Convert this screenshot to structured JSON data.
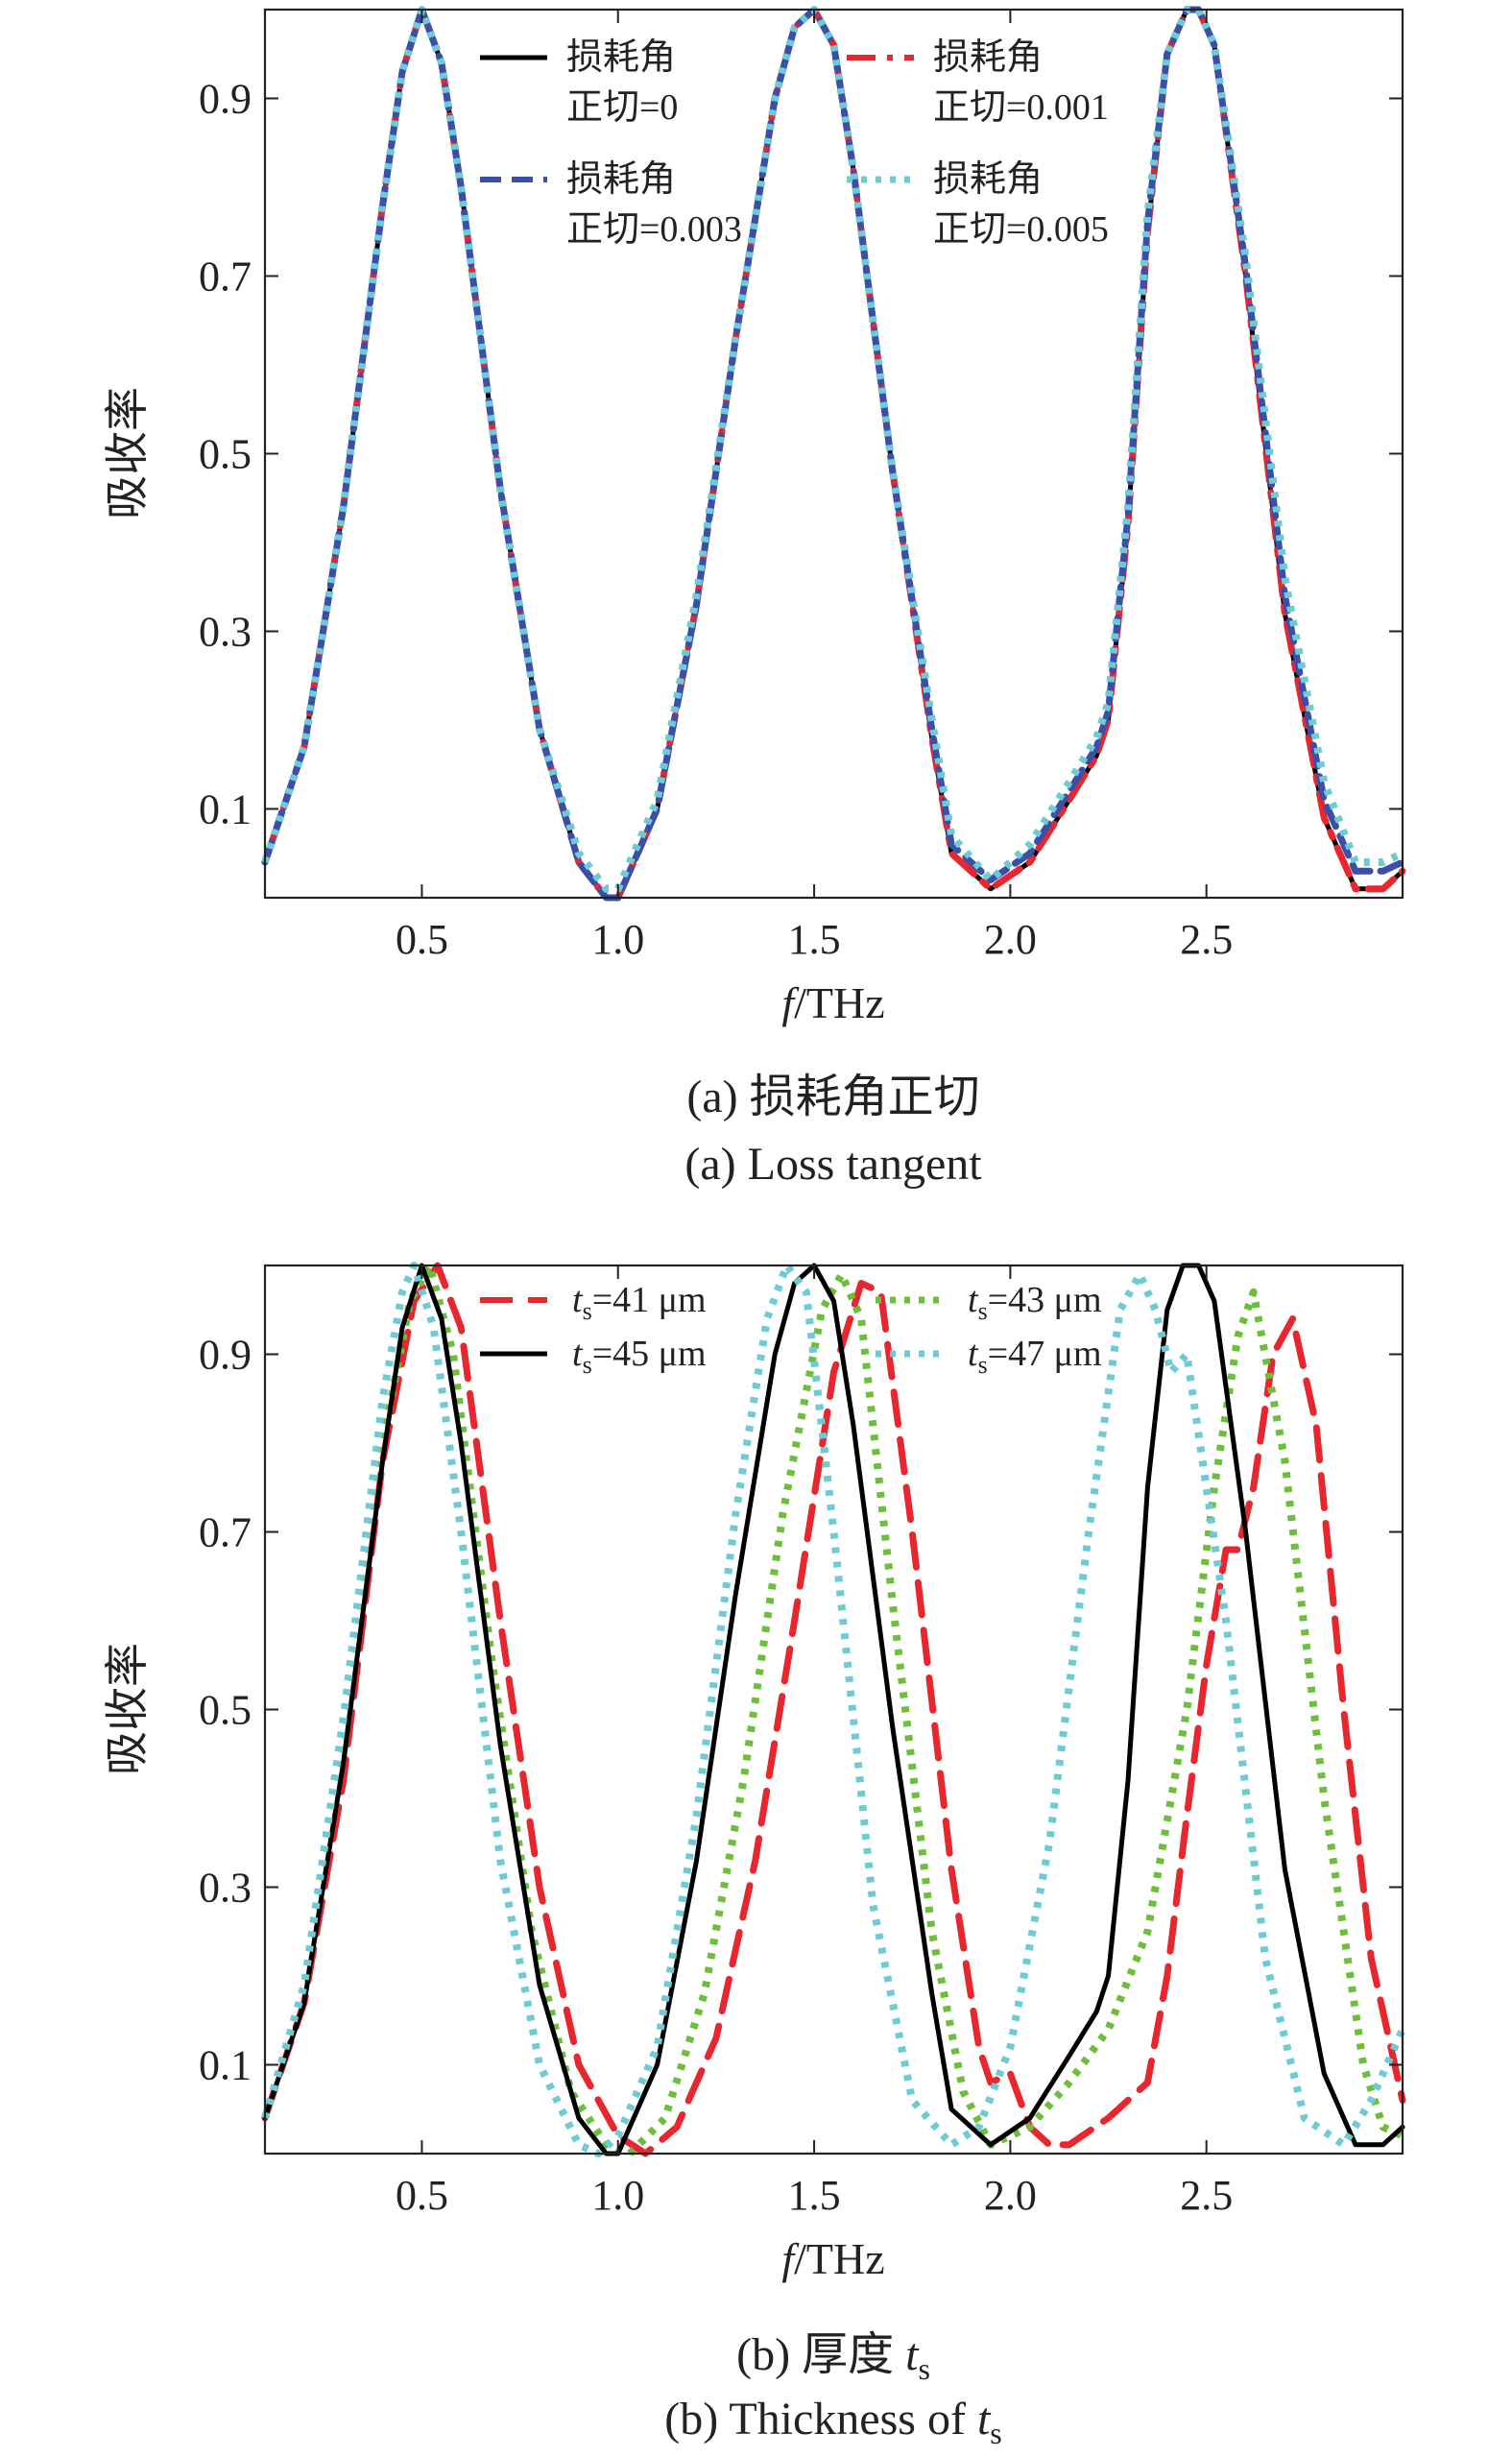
{
  "chart_data": [
    {
      "type": "line",
      "panel": "a",
      "caption_cn": "(a) 损耗角正切",
      "caption_en": "(a) Loss tangent",
      "xlabel_italic": "f",
      "xlabel_rest": "/THz",
      "ylabel": "吸收率",
      "xlim": [
        0.1,
        3.0
      ],
      "ylim": [
        0.0,
        1.0
      ],
      "xticks": [
        "0.5",
        "1.0",
        "1.5",
        "2.0",
        "2.5"
      ],
      "yticks": [
        "0.1",
        "0.3",
        "0.5",
        "0.7",
        "0.9"
      ],
      "grid": false,
      "legend_position": "top",
      "series": [
        {
          "name_line1": "损耗角",
          "name_line2": "正切=0",
          "color": "#000000",
          "dash": "solid",
          "x": [
            0.1,
            0.2,
            0.3,
            0.4,
            0.45,
            0.5,
            0.55,
            0.6,
            0.7,
            0.8,
            0.9,
            0.97,
            1.0,
            1.1,
            1.2,
            1.3,
            1.4,
            1.45,
            1.5,
            1.55,
            1.6,
            1.7,
            1.8,
            1.85,
            1.95,
            2.05,
            2.15,
            2.22,
            2.25,
            2.3,
            2.35,
            2.4,
            2.45,
            2.48,
            2.52,
            2.6,
            2.7,
            2.8,
            2.88,
            2.95,
            3.0
          ],
          "y": [
            0.04,
            0.17,
            0.44,
            0.78,
            0.93,
            1.0,
            0.94,
            0.8,
            0.46,
            0.19,
            0.04,
            0.0,
            0.0,
            0.1,
            0.33,
            0.63,
            0.9,
            0.98,
            1.0,
            0.96,
            0.82,
            0.48,
            0.18,
            0.05,
            0.01,
            0.04,
            0.11,
            0.16,
            0.2,
            0.42,
            0.75,
            0.95,
            1.0,
            1.0,
            0.96,
            0.7,
            0.32,
            0.09,
            0.01,
            0.01,
            0.03
          ]
        },
        {
          "name_line1": "损耗角",
          "name_line2": "正切=0.001",
          "color": "#e8262e",
          "dash": "dashdot",
          "x": [
            0.1,
            0.2,
            0.3,
            0.4,
            0.45,
            0.5,
            0.55,
            0.6,
            0.7,
            0.8,
            0.9,
            0.97,
            1.0,
            1.1,
            1.2,
            1.3,
            1.4,
            1.45,
            1.5,
            1.55,
            1.6,
            1.7,
            1.8,
            1.85,
            1.95,
            2.05,
            2.15,
            2.22,
            2.25,
            2.3,
            2.35,
            2.4,
            2.45,
            2.48,
            2.52,
            2.6,
            2.7,
            2.8,
            2.88,
            2.95,
            3.0
          ],
          "y": [
            0.04,
            0.17,
            0.44,
            0.78,
            0.93,
            1.0,
            0.94,
            0.8,
            0.46,
            0.19,
            0.04,
            0.0,
            0.0,
            0.1,
            0.33,
            0.63,
            0.9,
            0.98,
            1.0,
            0.96,
            0.82,
            0.48,
            0.18,
            0.05,
            0.01,
            0.04,
            0.11,
            0.16,
            0.2,
            0.42,
            0.75,
            0.95,
            1.0,
            1.0,
            0.96,
            0.7,
            0.32,
            0.09,
            0.01,
            0.01,
            0.03
          ]
        },
        {
          "name_line1": "损耗角",
          "name_line2": "正切=0.003",
          "color": "#3b4fa8",
          "dash": "dash",
          "x": [
            0.1,
            0.2,
            0.3,
            0.4,
            0.45,
            0.5,
            0.55,
            0.6,
            0.7,
            0.8,
            0.9,
            0.97,
            1.0,
            1.1,
            1.2,
            1.3,
            1.4,
            1.45,
            1.5,
            1.55,
            1.6,
            1.7,
            1.8,
            1.85,
            1.95,
            2.05,
            2.15,
            2.22,
            2.25,
            2.3,
            2.35,
            2.4,
            2.45,
            2.48,
            2.52,
            2.6,
            2.7,
            2.8,
            2.88,
            2.95,
            3.0
          ],
          "y": [
            0.04,
            0.17,
            0.44,
            0.78,
            0.93,
            1.0,
            0.94,
            0.8,
            0.46,
            0.19,
            0.04,
            0.0,
            0.0,
            0.1,
            0.33,
            0.63,
            0.9,
            0.98,
            1.0,
            0.96,
            0.82,
            0.48,
            0.19,
            0.06,
            0.02,
            0.05,
            0.12,
            0.17,
            0.21,
            0.43,
            0.76,
            0.95,
            1.0,
            1.0,
            0.96,
            0.71,
            0.34,
            0.11,
            0.03,
            0.03,
            0.04
          ]
        },
        {
          "name_line1": "损耗角",
          "name_line2": "正切=0.005",
          "color": "#6ecbd6",
          "dash": "dot",
          "x": [
            0.1,
            0.2,
            0.3,
            0.4,
            0.45,
            0.5,
            0.55,
            0.6,
            0.7,
            0.8,
            0.9,
            0.97,
            1.0,
            1.1,
            1.2,
            1.3,
            1.4,
            1.45,
            1.5,
            1.55,
            1.6,
            1.7,
            1.8,
            1.85,
            1.95,
            2.05,
            2.15,
            2.22,
            2.25,
            2.3,
            2.35,
            2.4,
            2.45,
            2.48,
            2.52,
            2.6,
            2.7,
            2.8,
            2.88,
            2.95,
            3.0
          ],
          "y": [
            0.04,
            0.17,
            0.44,
            0.78,
            0.93,
            1.0,
            0.94,
            0.8,
            0.46,
            0.19,
            0.05,
            0.01,
            0.01,
            0.11,
            0.34,
            0.63,
            0.9,
            0.98,
            1.0,
            0.96,
            0.82,
            0.48,
            0.2,
            0.07,
            0.02,
            0.06,
            0.13,
            0.18,
            0.22,
            0.44,
            0.77,
            0.95,
            1.0,
            1.0,
            0.96,
            0.72,
            0.36,
            0.13,
            0.04,
            0.04,
            0.05
          ]
        }
      ]
    },
    {
      "type": "line",
      "panel": "b",
      "caption_cn_prefix": "(b) 厚度 ",
      "caption_en_prefix": "(b) Thickness of ",
      "caption_var": "t",
      "caption_sub": "s",
      "xlabel_italic": "f",
      "xlabel_rest": "/THz",
      "ylabel": "吸收率",
      "xlim": [
        0.1,
        3.0
      ],
      "ylim": [
        0.0,
        1.0
      ],
      "xticks": [
        "0.5",
        "1.0",
        "1.5",
        "2.0",
        "2.5"
      ],
      "yticks": [
        "0.1",
        "0.3",
        "0.5",
        "0.7",
        "0.9"
      ],
      "grid": false,
      "legend_position": "top",
      "series": [
        {
          "name_var": "t",
          "name_sub": "s",
          "name_value": "=41 μm",
          "color": "#e8262e",
          "dash": "longdash",
          "x": [
            0.1,
            0.2,
            0.3,
            0.4,
            0.48,
            0.54,
            0.6,
            0.7,
            0.8,
            0.9,
            1.0,
            1.07,
            1.15,
            1.25,
            1.35,
            1.45,
            1.55,
            1.62,
            1.67,
            1.75,
            1.85,
            1.92,
            1.95,
            2.0,
            2.05,
            2.1,
            2.15,
            2.25,
            2.35,
            2.4,
            2.45,
            2.5,
            2.55,
            2.58,
            2.62,
            2.67,
            2.72,
            2.78,
            2.85,
            2.92,
            3.0
          ],
          "y": [
            0.04,
            0.17,
            0.42,
            0.78,
            0.96,
            1.0,
            0.93,
            0.6,
            0.3,
            0.1,
            0.02,
            0.0,
            0.03,
            0.13,
            0.33,
            0.6,
            0.88,
            0.98,
            0.97,
            0.7,
            0.32,
            0.12,
            0.08,
            0.09,
            0.03,
            0.01,
            0.01,
            0.04,
            0.08,
            0.2,
            0.38,
            0.55,
            0.68,
            0.68,
            0.75,
            0.9,
            0.94,
            0.82,
            0.5,
            0.22,
            0.06
          ]
        },
        {
          "name_var": "t",
          "name_sub": "s",
          "name_value": "=43 μm",
          "color": "#6cbf3a",
          "dash": "dot",
          "x": [
            0.1,
            0.2,
            0.3,
            0.4,
            0.47,
            0.52,
            0.58,
            0.68,
            0.78,
            0.88,
            0.97,
            1.03,
            1.12,
            1.22,
            1.32,
            1.42,
            1.52,
            1.57,
            1.62,
            1.7,
            1.8,
            1.88,
            1.95,
            2.05,
            2.15,
            2.25,
            2.35,
            2.45,
            2.52,
            2.58,
            2.62,
            2.7,
            2.8,
            2.9,
            2.95,
            3.0
          ],
          "y": [
            0.04,
            0.18,
            0.45,
            0.8,
            0.96,
            1.0,
            0.9,
            0.55,
            0.25,
            0.07,
            0.01,
            0.0,
            0.04,
            0.18,
            0.42,
            0.72,
            0.95,
            0.99,
            0.94,
            0.62,
            0.25,
            0.07,
            0.01,
            0.03,
            0.08,
            0.14,
            0.25,
            0.5,
            0.75,
            0.92,
            0.97,
            0.78,
            0.4,
            0.1,
            0.03,
            0.02
          ]
        },
        {
          "name_var": "t",
          "name_sub": "s",
          "name_value": "=45 μm",
          "color": "#000000",
          "dash": "solid",
          "x": [
            0.1,
            0.2,
            0.3,
            0.4,
            0.45,
            0.5,
            0.55,
            0.6,
            0.7,
            0.8,
            0.9,
            0.97,
            1.0,
            1.1,
            1.2,
            1.3,
            1.4,
            1.45,
            1.5,
            1.55,
            1.6,
            1.7,
            1.8,
            1.85,
            1.95,
            2.05,
            2.15,
            2.22,
            2.25,
            2.3,
            2.35,
            2.4,
            2.44,
            2.48,
            2.52,
            2.6,
            2.7,
            2.8,
            2.88,
            2.95,
            3.0
          ],
          "y": [
            0.04,
            0.17,
            0.44,
            0.78,
            0.93,
            1.0,
            0.94,
            0.8,
            0.46,
            0.19,
            0.04,
            0.0,
            0.0,
            0.1,
            0.33,
            0.63,
            0.9,
            0.98,
            1.0,
            0.96,
            0.82,
            0.48,
            0.18,
            0.05,
            0.01,
            0.04,
            0.11,
            0.16,
            0.2,
            0.42,
            0.75,
            0.95,
            1.0,
            1.0,
            0.96,
            0.7,
            0.32,
            0.09,
            0.01,
            0.01,
            0.03
          ]
        },
        {
          "name_var": "t",
          "name_sub": "s",
          "name_value": "=47 μm",
          "color": "#6ecbd6",
          "dash": "dot",
          "x": [
            0.1,
            0.2,
            0.3,
            0.4,
            0.45,
            0.48,
            0.53,
            0.6,
            0.7,
            0.8,
            0.9,
            0.95,
            1.0,
            1.1,
            1.2,
            1.3,
            1.38,
            1.43,
            1.48,
            1.55,
            1.65,
            1.75,
            1.85,
            1.92,
            2.0,
            2.1,
            2.2,
            2.28,
            2.33,
            2.37,
            2.41,
            2.45,
            2.55,
            2.65,
            2.75,
            2.85,
            2.92,
            3.0
          ],
          "y": [
            0.04,
            0.19,
            0.49,
            0.85,
            0.97,
            1.0,
            0.93,
            0.7,
            0.33,
            0.1,
            0.01,
            0.0,
            0.02,
            0.12,
            0.38,
            0.72,
            0.94,
            1.0,
            0.97,
            0.7,
            0.28,
            0.06,
            0.01,
            0.03,
            0.12,
            0.35,
            0.7,
            0.95,
            0.99,
            0.95,
            0.88,
            0.9,
            0.6,
            0.22,
            0.04,
            0.01,
            0.06,
            0.14
          ]
        }
      ]
    }
  ]
}
